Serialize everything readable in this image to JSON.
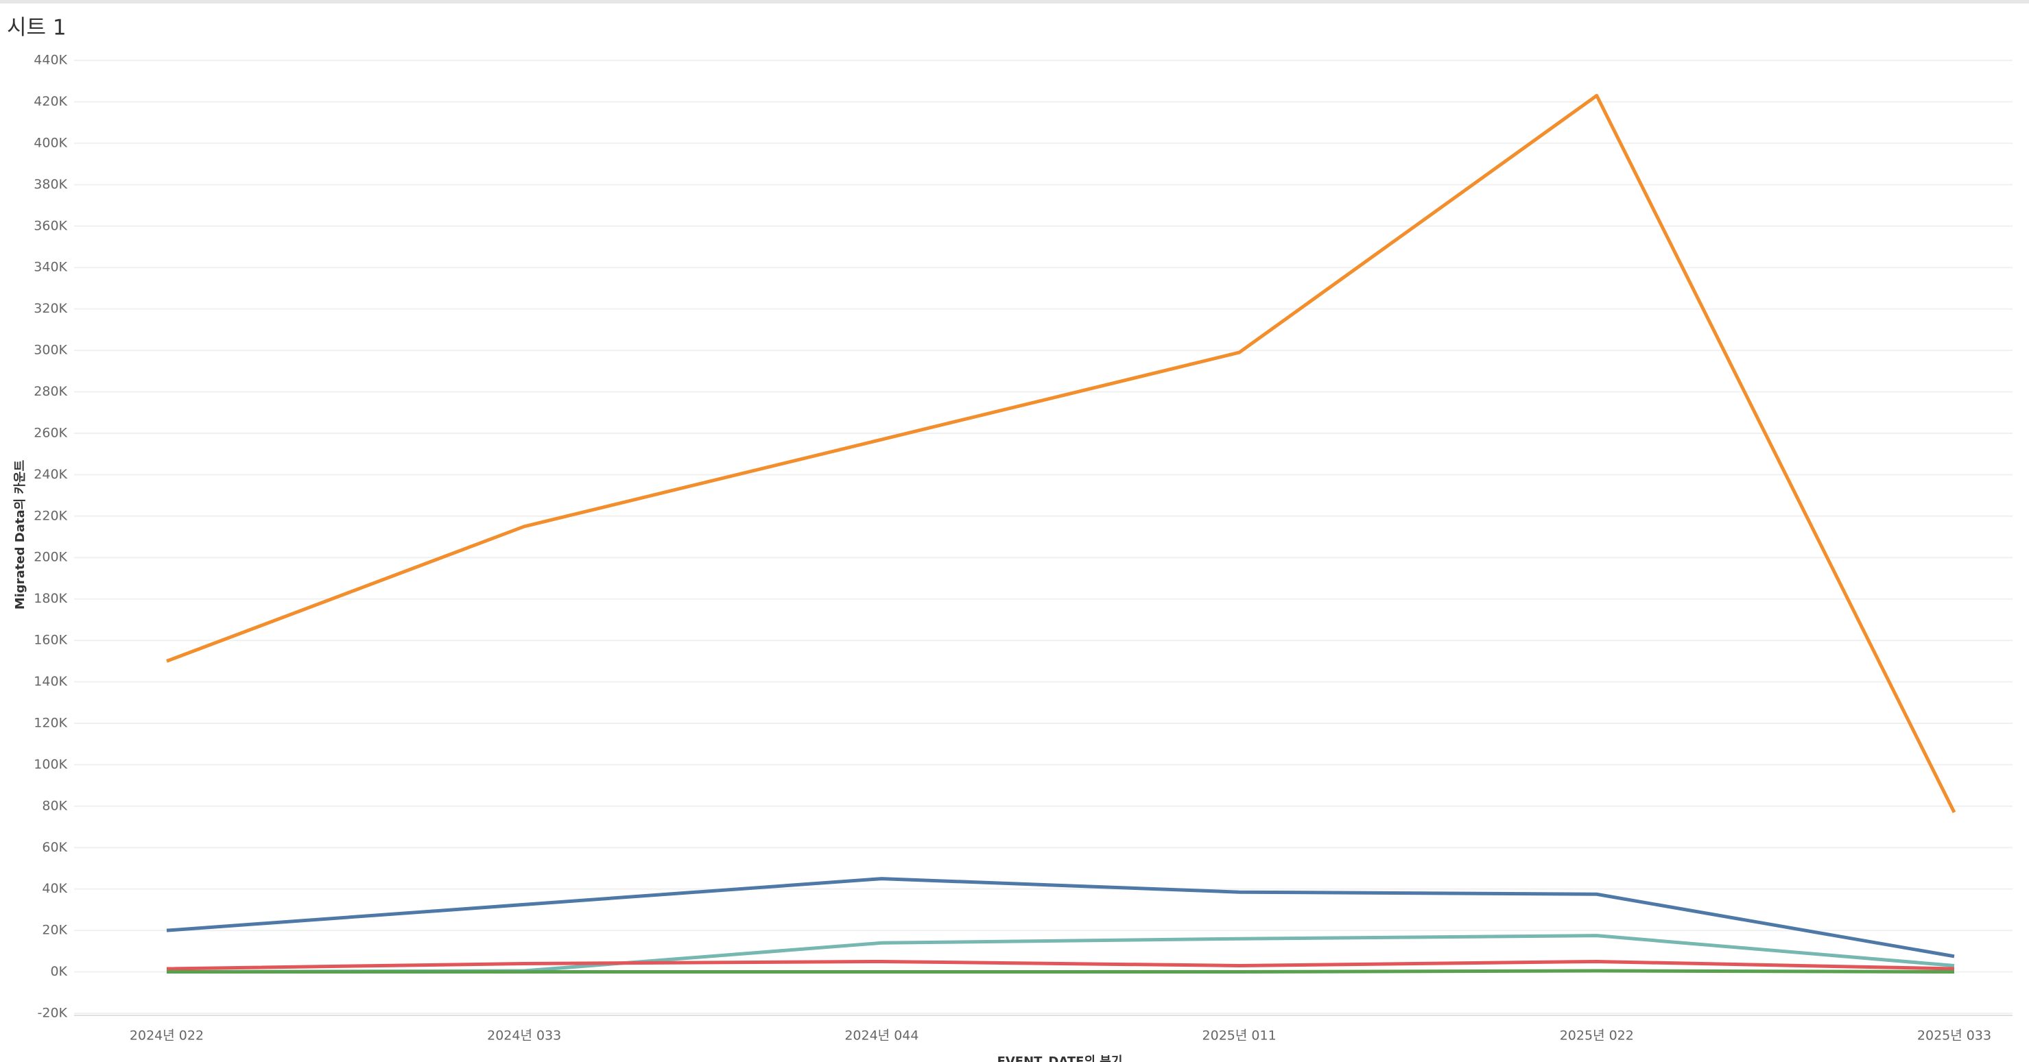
{
  "title": "시트 1",
  "chart_data": {
    "type": "line",
    "x_label": "EVENT_DATE의 분기",
    "y_label": "Migrated Data의 카운트",
    "categories": [
      "2024년 022",
      "2024년 033",
      "2024년 044",
      "2025년 011",
      "2025년 022",
      "2025년 033"
    ],
    "series": [
      {
        "color": "#f28e2b",
        "values": [
          150000,
          215000,
          257000,
          299000,
          423000,
          77000
        ]
      },
      {
        "color": "#4e79a7",
        "values": [
          20000,
          32500,
          45000,
          38500,
          37500,
          7500
        ]
      },
      {
        "color": "#76b7b2",
        "values": [
          0,
          500,
          14000,
          16000,
          17500,
          3000
        ]
      },
      {
        "color": "#e15759",
        "values": [
          1500,
          4000,
          5000,
          3000,
          5000,
          1500
        ]
      },
      {
        "color": "#59a14f",
        "values": [
          0,
          0,
          0,
          0,
          500,
          0
        ]
      }
    ],
    "ylim": [
      -21000,
      443000
    ],
    "yticks": [
      {
        "value": -20000,
        "label": "-20K"
      },
      {
        "value": 0,
        "label": "0K"
      },
      {
        "value": 20000,
        "label": "20K"
      },
      {
        "value": 40000,
        "label": "40K"
      },
      {
        "value": 60000,
        "label": "60K"
      },
      {
        "value": 80000,
        "label": "80K"
      },
      {
        "value": 100000,
        "label": "100K"
      },
      {
        "value": 120000,
        "label": "120K"
      },
      {
        "value": 140000,
        "label": "140K"
      },
      {
        "value": 160000,
        "label": "160K"
      },
      {
        "value": 180000,
        "label": "180K"
      },
      {
        "value": 200000,
        "label": "200K"
      },
      {
        "value": 220000,
        "label": "220K"
      },
      {
        "value": 240000,
        "label": "240K"
      },
      {
        "value": 260000,
        "label": "260K"
      },
      {
        "value": 280000,
        "label": "280K"
      },
      {
        "value": 300000,
        "label": "300K"
      },
      {
        "value": 320000,
        "label": "320K"
      },
      {
        "value": 340000,
        "label": "340K"
      },
      {
        "value": 360000,
        "label": "360K"
      },
      {
        "value": 380000,
        "label": "380K"
      },
      {
        "value": 400000,
        "label": "400K"
      },
      {
        "value": 420000,
        "label": "420K"
      },
      {
        "value": 440000,
        "label": "440K"
      }
    ],
    "grid": true
  }
}
